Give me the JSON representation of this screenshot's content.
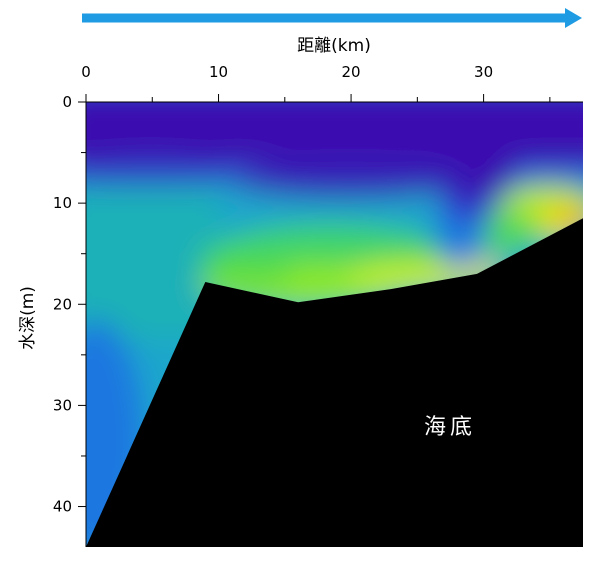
{
  "chart_data": {
    "type": "heatmap",
    "title": "",
    "xlabel": "距離(km)",
    "ylabel": "水深(m)",
    "x_axis_position": "top",
    "y_axis_inverted": true,
    "xlim": [
      0,
      37.5
    ],
    "ylim": [
      0,
      44
    ],
    "x_ticks": [
      0,
      10,
      20,
      30
    ],
    "x_tick_labels": [
      "0",
      "10",
      "20",
      "30"
    ],
    "y_ticks": [
      0,
      10,
      20,
      30,
      40
    ],
    "y_tick_labels": [
      "0",
      "10",
      "20",
      "30",
      "40"
    ],
    "grid": false,
    "legend": "none",
    "direction_arrow": {
      "orientation": "left-to-right",
      "color": "#1E9BE3"
    },
    "colormap": [
      "#3A0FB0",
      "#1E6FE0",
      "#19B8C0",
      "#2ED36E",
      "#9EF016",
      "#F3F000",
      "#F29A00"
    ],
    "seabed_profile": {
      "x": [
        0,
        9,
        16,
        23,
        29.5,
        37.5
      ],
      "depth": [
        44,
        17.8,
        19.8,
        18.5,
        17,
        11.5
      ]
    },
    "seabed_color": "#000000",
    "annotation": "海底"
  }
}
